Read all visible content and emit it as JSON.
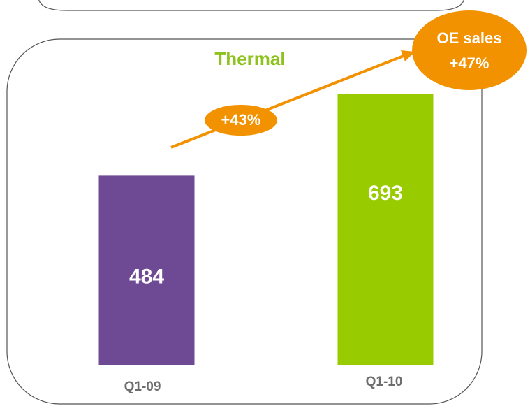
{
  "chart_data": {
    "type": "bar",
    "title": "Thermal",
    "categories": [
      "Q1-09",
      "Q1-10"
    ],
    "values": [
      484,
      693
    ],
    "colors": [
      "#6f4a94",
      "#99cc00"
    ],
    "ylim": [
      0,
      930
    ],
    "growth_label": "+43%",
    "callout": [
      "OE sales",
      "+47%"
    ]
  }
}
